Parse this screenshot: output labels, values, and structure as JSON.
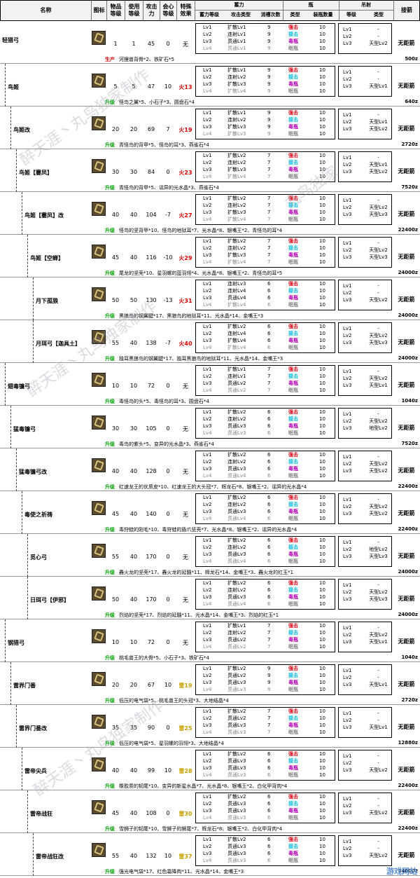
{
  "header": {
    "name": "名称",
    "icon": "图标",
    "level": "物品\n等级",
    "use_level": "使用\n等级",
    "attack": "攻击\n力",
    "crit": "会心\n等级",
    "special": "特殊\n效果",
    "charge": "蓄力",
    "charge_level": "蓄力等级",
    "attack_type": "攻击类型",
    "slots": "消槽次数",
    "vial": "瓶",
    "vial_type": "类型",
    "vial_count": "装瓶数量",
    "arc": "吊射",
    "arc_level": "等级",
    "arc_type": "类型",
    "close": "接箭"
  },
  "coatings": [
    {
      "label": "强击",
      "cls": "c-strong"
    },
    {
      "label": "接击",
      "cls": "c-conn"
    },
    {
      "label": "毒瓶",
      "cls": "c-poison"
    },
    {
      "label": "眠瓶",
      "cls": "c-sleep"
    }
  ],
  "watermarks": [
    "醉天涯丶丸鸟独家制作",
    "醉天涯丶丸鸟独家制作",
    "醉天涯丶丸鸟独家制作",
    "丸鸟独家"
  ],
  "logo": "游戏网站",
  "weapons": [
    {
      "name": "轻猎弓",
      "lvl": "1",
      "use": "1",
      "atk": "45",
      "crit": "0",
      "special": "无",
      "sp_cls": "",
      "depth": 0,
      "charge": [
        "Lv1",
        "Lv2",
        "Lv3",
        "Lv4"
      ],
      "atype": [
        "扩散Lv1",
        "连射Lv1",
        "贯通Lv1",
        "贯通Lv1"
      ],
      "slots": [
        "9",
        "9",
        "9",
        "9"
      ],
      "counts": [
        "10",
        "10",
        "10",
        "10"
      ],
      "arc_lv": [
        "Lv1",
        "Lv2",
        "Lv3"
      ],
      "arc_type": [
        "-",
        "-",
        "天型Lv2"
      ],
      "close": "无距箭",
      "note_tag": "生产",
      "note_tag_cls": "mk",
      "note": "河狸兽背骨*2、铁矿石*5",
      "price": "500z"
    },
    {
      "name": "鸟姬",
      "lvl": "5",
      "use": "5",
      "atk": "47",
      "crit": "10",
      "special": "火13",
      "sp_cls": "fire",
      "depth": 1,
      "charge": [
        "Lv1",
        "Lv2",
        "Lv3",
        "Lv4"
      ],
      "atype": [
        "扩散Lv1",
        "连射Lv2",
        "扩散Lv3",
        "扩散Lv4"
      ],
      "slots": [
        "9",
        "9",
        "9",
        "9"
      ],
      "counts": [
        "10",
        "10",
        "10",
        "10"
      ],
      "arc_lv": [
        "Lv1",
        "Lv2",
        "Lv3"
      ],
      "arc_type": [
        "-",
        "-",
        "天型Lv1"
      ],
      "close": "无距箭",
      "note_tag": "升级",
      "note_tag_cls": "up",
      "note": "怪鸟之翼*5、小石子*3、圆盘石*4",
      "price": "640z"
    },
    {
      "name": "鸟姬改",
      "lvl": "20",
      "use": "20",
      "atk": "69",
      "crit": "7",
      "special": "火19",
      "sp_cls": "fire",
      "depth": 2,
      "charge": [
        "Lv1",
        "Lv2",
        "Lv3",
        "Lv4"
      ],
      "atype": [
        "扩散Lv1",
        "连射Lv2",
        "扩散Lv3",
        "扩散Lv3"
      ],
      "slots": [
        "9",
        "9",
        "9",
        "9"
      ],
      "counts": [
        "10",
        "10",
        "10",
        "10"
      ],
      "arc_lv": [
        "Lv1",
        "Lv2",
        "Lv3"
      ],
      "arc_type": [
        "-",
        "天型Lv1",
        "天型Lv2"
      ],
      "close": "无距箭",
      "note_tag": "升级",
      "note_tag_cls": "up",
      "note": "青怪鸟的背甲*5、怪鸟的耳*3、燕雀石*4",
      "price": "2720z"
    },
    {
      "name": "鸟姬【霎凤】",
      "lvl": "30",
      "use": "30",
      "atk": "84",
      "crit": "0",
      "special": "火23",
      "sp_cls": "fire",
      "depth": 3,
      "charge": [
        "Lv1",
        "Lv2",
        "Lv3",
        "Lv4"
      ],
      "atype": [
        "扩散Lv2",
        "连射Lv2",
        "扩散Lv3",
        "扩散Lv4"
      ],
      "slots": [
        "7",
        "7",
        "7",
        "7"
      ],
      "counts": [
        "10",
        "10",
        "10",
        "10"
      ],
      "arc_lv": [
        "Lv1",
        "Lv2",
        "Lv3"
      ],
      "arc_type": [
        "-",
        "天型Lv1",
        "天型Lv2"
      ],
      "close": "无距箭",
      "note_tag": "升级",
      "note_tag_cls": "up",
      "note": "青怪鸟的背甲*5、谣异的光水晶*3、燕雀石*4",
      "price": "7520z"
    },
    {
      "name": "鸟姬【霎凤】改",
      "lvl": "40",
      "use": "40",
      "atk": "104",
      "crit": "-7",
      "special": "火27",
      "sp_cls": "fire",
      "depth": 4,
      "charge": [
        "Lv1",
        "Lv2",
        "Lv3",
        "Lv4"
      ],
      "atype": [
        "扩散Lv2",
        "连射Lv2",
        "扩散Lv3",
        "扩散Lv4"
      ],
      "slots": [
        "7",
        "7",
        "7",
        "7"
      ],
      "counts": [
        "10",
        "10",
        "10",
        "10"
      ],
      "arc_lv": [
        "Lv1",
        "Lv2",
        "Lv3"
      ],
      "arc_type": [
        "-",
        "天型Lv2",
        "天型Lv3"
      ],
      "close": "无距箭",
      "note_tag": "升级",
      "note_tag_cls": "up",
      "note": "怪鸟的坚背甲*10、怪鸟的地狱耳*7、光水晶*8、银嘴王*2、青怪鸟的耳*4",
      "price": "22400z"
    },
    {
      "name": "鸟姬【空蝉】",
      "lvl": "45",
      "use": "40",
      "atk": "116",
      "crit": "-10",
      "special": "火29",
      "sp_cls": "fire",
      "depth": 5,
      "charge": [
        "Lv1",
        "Lv2",
        "Lv3",
        "Lv4"
      ],
      "atype": [
        "扩散Lv2",
        "连射Lv2",
        "扩散Lv3",
        "扩散Lv4"
      ],
      "slots": [
        "7",
        "7",
        "7",
        "7"
      ],
      "counts": [
        "10",
        "10",
        "10",
        "10"
      ],
      "arc_lv": [
        "Lv1",
        "Lv2",
        "Lv3"
      ],
      "arc_type": [
        "-",
        "天型Lv2",
        "天型Lv3"
      ],
      "close": "无距箭",
      "note_tag": "升级",
      "note_tag_cls": "up",
      "note": "尾龙的坚壳*10、星羽螺的蓝羽翎*4、光水晶*8、银嘴王*2、青怪鸟的耳*5",
      "price": "24000z"
    },
    {
      "name": "月下孤狼",
      "lvl": "50",
      "use": "50",
      "atk": "130",
      "crit": "-13",
      "special": "火31",
      "sp_cls": "fire",
      "depth": 6,
      "charge": [
        "Lv1",
        "Lv2",
        "Lv3",
        "Lv4"
      ],
      "atype": [
        "连射Lv3",
        "连射Lv4",
        "贯通Lv4",
        "扩散Lv4"
      ],
      "slots": [
        "6",
        "6",
        "6",
        "6"
      ],
      "counts": [
        "10",
        "10",
        "10",
        "10"
      ],
      "arc_lv": [
        "Lv1",
        "Lv2",
        "Lv3"
      ],
      "arc_type": [
        "-",
        "-",
        "天型Lv2"
      ],
      "close": "无距箭",
      "note_tag": "升级",
      "note_tag_cls": "up",
      "note": "黑狼鸟的钢翼腱*17、黑狼鸟的地狱耳*11、光水晶*14、金嘴王*3",
      "price": "24000z"
    },
    {
      "name": "月珥弓【迦具土】",
      "lvl": "55",
      "use": "40",
      "atk": "138",
      "crit": "-7",
      "special": "火40",
      "sp_cls": "fire",
      "depth": 6,
      "charge": [
        "Lv1",
        "Lv2",
        "Lv3",
        "Lv4"
      ],
      "atype": [
        "扩散Lv2",
        "连射Lv4",
        "扩散Lv4",
        "扩散Lv4"
      ],
      "slots": [
        "6",
        "6",
        "6",
        "6"
      ],
      "counts": [
        "10",
        "10",
        "10",
        "10"
      ],
      "arc_lv": [
        "Lv1",
        "Lv2",
        "Lv3"
      ],
      "arc_type": [
        "-",
        "天型Lv2",
        "天型Lv3"
      ],
      "close": "无距箭",
      "note_tag": "升级",
      "note_tag_cls": "up",
      "note": "独耳黑狼鸟的钢翼腱*17、独耳黑狼鸟的地狱耳*11、光水晶*14、金嘴王*3",
      "price": "24000z"
    },
    {
      "name": "翅毒镰弓",
      "lvl": "10",
      "use": "10",
      "atk": "72",
      "crit": "0",
      "special": "无",
      "sp_cls": "",
      "depth": 1,
      "charge": [
        "Lv1",
        "Lv2",
        "Lv3",
        "Lv4"
      ],
      "atype": [
        "扩散Lv1",
        "连射Lv1",
        "贯通Lv2",
        "贯通Lv2"
      ],
      "slots": [
        "7",
        "7",
        "7",
        "7"
      ],
      "counts": [
        "10",
        "10",
        "10",
        "10"
      ],
      "arc_lv": [
        "Lv1",
        "Lv2",
        "Lv3"
      ],
      "arc_type": [
        "-",
        "天型Lv2",
        "天型Lv1"
      ],
      "close": "无距箭",
      "note_tag": "升级",
      "note_tag_cls": "up",
      "note": "毒怪鸟的头*5、毒怪鸟的耳*3、圆盘石*4",
      "price": "1040z"
    },
    {
      "name": "猛毒镰弓",
      "lvl": "30",
      "use": "30",
      "atk": "105",
      "crit": "0",
      "special": "无",
      "sp_cls": "",
      "depth": 2,
      "charge": [
        "Lv1",
        "Lv2",
        "Lv3",
        "Lv4"
      ],
      "atype": [
        "扩散Lv2",
        "连射Lv2",
        "贯通Lv3",
        "贯通Lv3"
      ],
      "slots": [
        "6",
        "6",
        "6",
        "6"
      ],
      "counts": [
        "10",
        "10",
        "10",
        "10"
      ],
      "arc_lv": [
        "Lv1",
        "Lv2",
        "Lv3"
      ],
      "arc_type": [
        "-",
        "天型Lv2",
        "地型Lv2"
      ],
      "close": "无距箭",
      "note_tag": "升级",
      "note_tag_cls": "up",
      "note": "毒鸟的紫头*5、变异的光水晶*3、燕雀石*4",
      "price": "7520z"
    },
    {
      "name": "猛毒镰弓改",
      "lvl": "40",
      "use": "40",
      "atk": "128",
      "crit": "0",
      "special": "无",
      "sp_cls": "",
      "depth": 3,
      "charge": [
        "Lv1",
        "Lv2",
        "Lv3",
        "Lv4"
      ],
      "atype": [
        "扩散Lv2",
        "连射Lv2",
        "贯通Lv3",
        "贯通Lv4"
      ],
      "slots": [
        "6",
        "6",
        "6",
        "6"
      ],
      "counts": [
        "10",
        "10",
        "10",
        "10"
      ],
      "arc_lv": [
        "Lv1",
        "Lv2",
        "Lv3"
      ],
      "arc_type": [
        "-",
        "天型Lv2",
        "天型Lv2"
      ],
      "close": "无距箭",
      "note_tag": "升级",
      "note_tag_cls": "up",
      "note": "红速龙王的优质皮*10、红速龙王的大头冠*7、辉龙石*8、银嘴王*2、谣异的光水晶*4",
      "price": "22400z"
    },
    {
      "name": "毒使之祈祷",
      "lvl": "45",
      "use": "40",
      "atk": "140",
      "crit": "0",
      "special": "无",
      "sp_cls": "",
      "depth": 4,
      "charge": [
        "Lv1",
        "Lv2",
        "Lv3",
        "Lv4"
      ],
      "atype": [
        "扩散Lv2",
        "连射Lv2",
        "贯通Lv3",
        "贯通Lv4"
      ],
      "slots": [
        "6",
        "6",
        "6",
        "6"
      ],
      "counts": [
        "10",
        "10",
        "10",
        "10"
      ],
      "arc_lv": [
        "Lv1",
        "Lv2",
        "Lv3"
      ],
      "arc_type": [
        "-",
        "天型Lv2",
        "天型Lv2"
      ],
      "close": "无距箭",
      "note_tag": "升级",
      "note_tag_cls": "up",
      "note": "毒狩蛙的刚毛*10、毒狩蛙的盾爪坚壳*7、光水晶*8、银嘴王*2、谣异的光水晶*4",
      "price": "22400z"
    },
    {
      "name": "觅心弓",
      "lvl": "55",
      "use": "40",
      "atk": "170",
      "crit": "0",
      "special": "无",
      "sp_cls": "",
      "depth": 5,
      "charge": [
        "Lv1",
        "Lv2",
        "Lv3",
        "Lv4"
      ],
      "atype": [
        "扩散Lv2",
        "连射Lv2",
        "贯通Lv3",
        "贯通Lv4"
      ],
      "slots": [
        "6",
        "6",
        "6",
        "6"
      ],
      "counts": [
        "10",
        "10",
        "10",
        "10"
      ],
      "arc_lv": [
        "Lv1",
        "Lv2",
        "Lv3"
      ],
      "arc_type": [
        "-",
        "地型Lv2",
        "天型Lv3"
      ],
      "close": "无距箭",
      "note_tag": "升级",
      "note_tag_cls": "up",
      "note": "轟火龙的坚壳*17、轟火龙的延髓*11、辉龙石*14、金嘴王*3、轟火龙的红玉*1",
      "price": "24000z"
    },
    {
      "name": "日珥弓【伊邪】",
      "lvl": "50",
      "use": "40",
      "atk": "170",
      "crit": "0",
      "special": "无",
      "sp_cls": "",
      "depth": 5,
      "charge": [
        "Lv1",
        "Lv2",
        "Lv3",
        "Lv4"
      ],
      "atype": [
        "扩散Lv2",
        "连射Lv2",
        "贯通Lv3",
        "贯通Lv4"
      ],
      "slots": [
        "6",
        "6",
        "6",
        "6"
      ],
      "counts": [
        "10",
        "10",
        "10",
        "10"
      ],
      "arc_lv": [
        "Lv1",
        "Lv2",
        "Lv3"
      ],
      "arc_type": [
        "-",
        "天型Lv2",
        "天型Lv3"
      ],
      "close": "无距箭",
      "note_tag": "升级",
      "note_tag_cls": "up",
      "note": "烈焰的坚壳*17、烈焰的延髓*11、光水晶*14、金嘴王*3、烈焰的红玉*1",
      "price": "24000z"
    },
    {
      "name": "钢猎弓",
      "lvl": "10",
      "use": "10",
      "atk": "72",
      "crit": "0",
      "special": "无",
      "sp_cls": "",
      "depth": 1,
      "charge": [
        "Lv1",
        "Lv2",
        "Lv3",
        "Lv4"
      ],
      "atype": [
        "扩散Lv1",
        "连射Lv2",
        "贯通Lv2",
        "贯通Lv2"
      ],
      "slots": [
        "7",
        "7",
        "7",
        "7"
      ],
      "counts": [
        "10",
        "10",
        "10",
        "10"
      ],
      "arc_lv": [
        "Lv1",
        "Lv2",
        "Lv3"
      ],
      "arc_type": [
        "-",
        "天型Lv2",
        "天型Lv1"
      ],
      "close": "无距箭",
      "note_tag": "升级",
      "note_tag_cls": "up",
      "note": "桃毛兽王的大骨*5、小石子*3、铁矿石*4",
      "price": "1040z"
    },
    {
      "name": "雷界门番",
      "lvl": "20",
      "use": "20",
      "atk": "67",
      "crit": "10",
      "special": "雷19",
      "sp_cls": "thun",
      "depth": 2,
      "charge": [
        "Lv1",
        "Lv2",
        "Lv3",
        "Lv4"
      ],
      "atype": [
        "扩散Lv2",
        "贯通Lv2",
        "贯通Lv3",
        "贯通Lv3"
      ],
      "slots": [
        "9",
        "9",
        "9",
        "9"
      ],
      "counts": [
        "10",
        "10",
        "10",
        "10"
      ],
      "arc_lv": [
        "Lv1",
        "Lv2",
        "Lv3"
      ],
      "arc_type": [
        "-",
        "-",
        "天型Lv1"
      ],
      "close": "无距箭",
      "note_tag": "升级",
      "note_tag_cls": "up",
      "note": "低压的电气袋*5、桃毛兽王的头冠*3、大地结晶*4",
      "price": "2720z"
    },
    {
      "name": "雷界门番改",
      "lvl": "35",
      "use": "35",
      "atk": "90",
      "crit": "0",
      "special": "雷25",
      "sp_cls": "thun",
      "depth": 3,
      "charge": [
        "Lv1",
        "Lv2",
        "Lv3",
        "Lv4"
      ],
      "atype": [
        "扩散Lv2",
        "贯通Lv2",
        "贯通Lv3",
        "贯通Lv3"
      ],
      "slots": [
        "7",
        "7",
        "7",
        "7"
      ],
      "counts": [
        "10",
        "10",
        "10",
        "10"
      ],
      "arc_lv": [
        "Lv1",
        "Lv2",
        "Lv3"
      ],
      "arc_type": [
        "-",
        "-",
        "天型Lv1"
      ],
      "close": "无距箭",
      "note_tag": "升级",
      "note_tag_cls": "up",
      "note": "低压的电气袋*5、星羽螺的羽翎*3、大地结晶*4",
      "price": "12880z"
    },
    {
      "name": "雷帝尖兵",
      "lvl": "40",
      "use": "40",
      "atk": "99",
      "crit": "10",
      "special": "雷28",
      "sp_cls": "thun",
      "depth": 4,
      "charge": [
        "Lv1",
        "Lv2",
        "Lv3",
        "Lv4"
      ],
      "atype": [
        "扩散Lv2",
        "贯通Lv3",
        "贯通Lv3",
        "贯通Lv3"
      ],
      "slots": [
        "6",
        "6",
        "6",
        "6"
      ],
      "counts": [
        "10",
        "10",
        "10",
        "10"
      ],
      "arc_lv": [
        "Lv1",
        "Lv2",
        "Lv3"
      ],
      "arc_type": [
        "-",
        "-",
        "天型Lv2"
      ],
      "close": "无距箭",
      "note_tag": "升级",
      "note_tag_cls": "up",
      "note": "橡胶质的韧尾*10、变异的新星水晶*7、光水晶*8、银嘴王*2、白化甲背肉*4",
      "price": "22400z"
    },
    {
      "name": "雷帝战狂",
      "lvl": "45",
      "use": "40",
      "atk": "108",
      "crit": "0",
      "special": "雷30",
      "sp_cls": "thun",
      "depth": 5,
      "charge": [
        "Lv1",
        "Lv2",
        "Lv3",
        "Lv4"
      ],
      "atype": [
        "扩散Lv2",
        "贯通Lv3",
        "贯通Lv3",
        "贯通Lv3"
      ],
      "slots": [
        "6",
        "6",
        "6",
        "6"
      ],
      "counts": [
        "10",
        "10",
        "10",
        "10"
      ],
      "arc_lv": [
        "Lv1",
        "Lv2",
        "Lv3"
      ],
      "arc_type": [
        "-",
        "-",
        "天型Lv2"
      ],
      "close": "无距箭",
      "note_tag": "升级",
      "note_tag_cls": "up",
      "note": "雪狮子的韧尾*10、雪狮子的狮尾*7、辉龙石*8、银嘴王*2、白化甲背肉*4",
      "price": "22400z"
    },
    {
      "name": "雷帝战狂改",
      "lvl": "55",
      "use": "40",
      "atk": "132",
      "crit": "10",
      "special": "雷37",
      "sp_cls": "thun",
      "depth": 6,
      "charge": [
        "Lv1",
        "Lv2",
        "Lv3",
        "Lv4"
      ],
      "atype": [
        "扩散Lv2",
        "贯通Lv3",
        "贯通Lv3",
        "贯通Lv3"
      ],
      "slots": [
        "6",
        "6",
        "6",
        "6"
      ],
      "counts": [
        "10",
        "10",
        "10",
        "10"
      ],
      "arc_lv": [
        "Lv1",
        "Lv2",
        "Lv3"
      ],
      "arc_type": [
        "-",
        "-",
        "天型Lv2"
      ],
      "close": "无距箭",
      "note_tag": "升级",
      "note_tag_cls": "up",
      "note": "强光电气袋*17、红色霜降肉*11、光水晶*14、金嘴王*3",
      "price": "24000z"
    }
  ]
}
